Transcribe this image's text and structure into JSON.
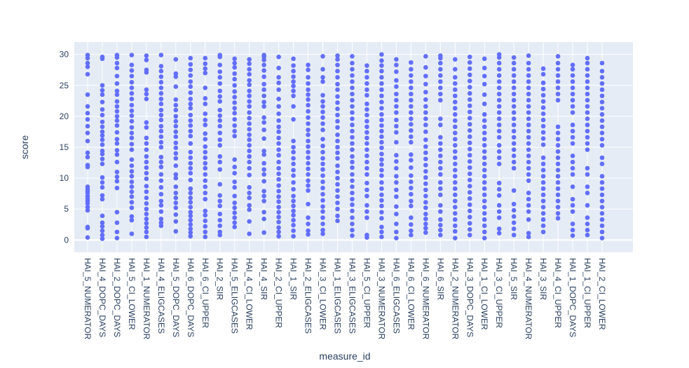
{
  "chart_data": {
    "type": "scatter",
    "xlabel": "measure_id",
    "ylabel": "score",
    "ylim": [
      -2,
      32
    ],
    "y_ticks": [
      0,
      5,
      10,
      15,
      20,
      25,
      30
    ],
    "grid": true,
    "marker_color": "#636efa",
    "plot_bg": "#e5ecf6",
    "categories": [
      "HAI_5_NUMERATOR",
      "HAI_4_DOPC_DAYS",
      "HAI_2_DOPC_DAYS",
      "HAI_5_CI_LOWER",
      "HAI_1_NUMERATOR",
      "HAI_4_ELIGCASES",
      "HAI_5_DOPC_DAYS",
      "HAI_6_DOPC_DAYS",
      "HAI_6_CI_UPPER",
      "HAI_2_SIR",
      "HAI_5_ELIGCASES",
      "HAI_4_CI_LOWER",
      "HAI_4_SIR",
      "HAI_2_CI_UPPER",
      "HAI_1_SIR",
      "HAI_2_ELIGCASES",
      "HAI_3_CI_LOWER",
      "HAI_1_ELIGCASES",
      "HAI_3_ELIGCASES",
      "HAI_5_CI_UPPER",
      "HAI_3_NUMERATOR",
      "HAI_6_ELIGCASES",
      "HAI_6_CI_LOWER",
      "HAI_6_NUMERATOR",
      "HAI_6_SIR",
      "HAI_2_NUMERATOR",
      "HAI_3_DOPC_DAYS",
      "HAI_1_CI_LOWER",
      "HAI_3_CI_UPPER",
      "HAI_5_SIR",
      "HAI_4_NUMERATOR",
      "HAI_3_SIR",
      "HAI_4_CI_UPPER",
      "HAI_1_DOPC_DAYS",
      "HAI_1_CI_UPPER",
      "HAI_2_CI_LOWER"
    ],
    "series": [
      {
        "values": [
          [
            0.4,
            1.9,
            2.1,
            4.8,
            5.3,
            5.9,
            6.3,
            6.7,
            7.1,
            7.6,
            7.9,
            8.2,
            8.6,
            11.8,
            12.1,
            13.4,
            14.1,
            16.0,
            17.3,
            18.4,
            19.5,
            20.5,
            21.6,
            23.5,
            26.8,
            28.0,
            28.6,
            29.4,
            29.9
          ],
          [
            0.2,
            0.8,
            1.5,
            2.2,
            2.8,
            3.9,
            6.6,
            7.2,
            8.5,
            9.3,
            10.1,
            12.3,
            13.1,
            13.9,
            14.4,
            15.4,
            16.2,
            16.9,
            17.5,
            18.3,
            19.1,
            20.2,
            21.1,
            22.3,
            23.5,
            24.2,
            25.0,
            29.3,
            29.6
          ],
          [
            0.3,
            1.3,
            2.8,
            4.5,
            8.4,
            9.5,
            10.2,
            11.0,
            12.6,
            13.8,
            14.5,
            15.6,
            16.3,
            17.4,
            18.5,
            19.3,
            20.0,
            20.8,
            21.6,
            22.4,
            23.5,
            24.1,
            25.3,
            26.5,
            27.8,
            28.6,
            29.5,
            29.9
          ],
          [
            1.0,
            3.2,
            3.8,
            5.2,
            6.1,
            7.0,
            7.8,
            8.6,
            9.4,
            10.3,
            11.1,
            12.0,
            13.0,
            14.6,
            15.5,
            16.5,
            17.3,
            18.2,
            19.2,
            20.1,
            20.9,
            21.8,
            22.8,
            23.7,
            24.6,
            25.5,
            26.5,
            27.4,
            28.3,
            29.9
          ],
          [
            0.5,
            1.3,
            2.0,
            2.7,
            3.4,
            4.2,
            5.0,
            5.9,
            6.8,
            7.8,
            8.7,
            9.9,
            10.8,
            11.7,
            12.6,
            13.5,
            14.6,
            15.6,
            16.5,
            18.2,
            19.0,
            22.8,
            23.6,
            24.3,
            27.1,
            27.5,
            29.1,
            29.8
          ],
          [
            2.3,
            2.8,
            3.4,
            4.6,
            5.6,
            6.3,
            7.4,
            8.5,
            9.6,
            10.6,
            11.8,
            12.6,
            13.4,
            15.0,
            15.8,
            16.7,
            17.6,
            18.4,
            19.4,
            20.2,
            21.0,
            22.0,
            22.8,
            23.7,
            24.6,
            25.5,
            26.4,
            27.3,
            28.1,
            29.9
          ],
          [
            1.4,
            3.0,
            4.1,
            5.2,
            6.0,
            6.8,
            7.6,
            8.6,
            10.0,
            10.6,
            12.0,
            13.2,
            14.0,
            14.9,
            15.7,
            16.7,
            17.5,
            18.4,
            19.2,
            20.0,
            21.0,
            21.8,
            22.7,
            24.8,
            26.4,
            26.9,
            29.2
          ],
          [
            0.6,
            1.2,
            1.8,
            2.5,
            3.2,
            3.9,
            4.5,
            5.3,
            6.1,
            6.8,
            7.6,
            8.3,
            9.7,
            10.8,
            11.6,
            12.4,
            13.3,
            14.2,
            15.6,
            16.8,
            17.6,
            18.5,
            19.3,
            20.2,
            21.3,
            22.0,
            22.8,
            23.8,
            24.8,
            25.6,
            26.6,
            27.5,
            28.4,
            29.4
          ],
          [
            0.5,
            1.3,
            2.2,
            3.1,
            4.0,
            4.7,
            6.6,
            7.6,
            8.6,
            9.6,
            10.6,
            11.6,
            12.4,
            13.3,
            14.2,
            15.1,
            16.3,
            17.2,
            18.6,
            19.4,
            20.4,
            22.0,
            22.9,
            24.6,
            27.0,
            27.7,
            28.5,
            29.4
          ],
          [
            0.8,
            1.3,
            2.3,
            3.2,
            4.2,
            5.5,
            6.3,
            7.2,
            9.0,
            11.4,
            12.6,
            13.5,
            15.3,
            16.2,
            17.3,
            18.4,
            19.3,
            20.1,
            21.0,
            22.4,
            23.2,
            24.1,
            25.3,
            26.3,
            27.2,
            28.3,
            29.6,
            29.9
          ],
          [
            2.1,
            2.8,
            3.6,
            4.4,
            5.2,
            6.0,
            7.1,
            8.5,
            9.4,
            10.8,
            11.8,
            13.0,
            16.8,
            17.6,
            18.5,
            19.5,
            20.5,
            21.3,
            22.2,
            23.1,
            24.0,
            25.0,
            26.0,
            26.9,
            27.9,
            28.6,
            29.3
          ],
          [
            1.0,
            3.0,
            4.9,
            5.6,
            6.8,
            7.6,
            8.5,
            10.5,
            11.6,
            12.6,
            13.5,
            14.4,
            15.3,
            16.2,
            17.0,
            17.9,
            18.8,
            19.7,
            20.6,
            21.6,
            22.4,
            23.3,
            24.1,
            25.1,
            25.8,
            26.8,
            27.6,
            28.5,
            29.2
          ],
          [
            1.2,
            3.4,
            4.5,
            6.3,
            7.1,
            7.9,
            9.5,
            10.6,
            11.4,
            12.4,
            13.8,
            14.4,
            16.4,
            17.8,
            19.0,
            19.8,
            21.6,
            22.3,
            23.3,
            24.3,
            25.2,
            26.4,
            27.4,
            28.3,
            29.1,
            29.6,
            29.9
          ],
          [
            0.6,
            1.3,
            2.0,
            2.9,
            3.7,
            4.5,
            5.3,
            6.2,
            7.0,
            7.9,
            8.8,
            9.8,
            10.7,
            11.6,
            12.6,
            13.7,
            14.6,
            15.6,
            16.5,
            17.5,
            18.3,
            19.3,
            20.4,
            21.6,
            22.8,
            24.3,
            25.4,
            26.3,
            27.8,
            29.6
          ],
          [
            0.6,
            1.5,
            2.4,
            3.2,
            4.0,
            4.7,
            5.5,
            6.3,
            7.1,
            8.2,
            9.3,
            10.4,
            11.3,
            12.3,
            13.2,
            14.2,
            15.0,
            16.0,
            19.5,
            21.6,
            23.3,
            24.1,
            24.9,
            25.6,
            26.4,
            27.3,
            28.2,
            29.3
          ],
          [
            0.9,
            1.5,
            2.6,
            3.6,
            5.8,
            8.0,
            8.8,
            9.6,
            10.6,
            11.5,
            12.4,
            13.3,
            14.2,
            15.1,
            16.0,
            17.0,
            17.8,
            18.8,
            19.8,
            20.8,
            21.8,
            22.7,
            23.5,
            24.3,
            25.3,
            26.3,
            27.5,
            28.3
          ],
          [
            1.0,
            1.6,
            2.6,
            3.6,
            4.6,
            5.4,
            6.4,
            7.4,
            8.4,
            9.4,
            10.4,
            11.4,
            12.3,
            13.2,
            14.2,
            15.2,
            16.3,
            17.8,
            18.8,
            19.8,
            20.7,
            21.6,
            22.4,
            23.4,
            25.6,
            26.3,
            27.6,
            29.7
          ],
          [
            3.1,
            3.9,
            5.0,
            6.0,
            7.0,
            8.0,
            9.0,
            10.0,
            11.0,
            12.0,
            13.2,
            14.1,
            15.0,
            16.0,
            17.0,
            18.2,
            19.2,
            20.2,
            21.2,
            22.2,
            23.2,
            24.3,
            25.2,
            26.3,
            27.3,
            28.3,
            29.2,
            29.8
          ],
          [
            0.7,
            1.6,
            2.6,
            3.6,
            4.7,
            5.7,
            6.6,
            7.6,
            8.6,
            9.6,
            10.6,
            11.7,
            12.6,
            13.5,
            14.6,
            15.6,
            16.6,
            17.6,
            18.6,
            19.6,
            20.6,
            21.6,
            22.6,
            23.6,
            24.6,
            25.6,
            26.6,
            27.6,
            28.6,
            29.7
          ],
          [
            0.4,
            0.8,
            3.6,
            4.6,
            5.6,
            7.1,
            8.1,
            9.2,
            10.6,
            11.6,
            12.6,
            13.6,
            14.6,
            15.6,
            16.5,
            17.4,
            18.3,
            19.2,
            20.2,
            21.1,
            22.0,
            23.4,
            24.3,
            25.3,
            26.3,
            27.3,
            28.2
          ],
          [
            0.5,
            1.3,
            2.1,
            3.5,
            4.5,
            5.5,
            6.4,
            7.3,
            8.3,
            9.3,
            10.4,
            11.3,
            12.2,
            13.0,
            13.9,
            14.9,
            15.8,
            16.7,
            17.6,
            18.5,
            19.4,
            20.3,
            21.3,
            22.3,
            23.3,
            24.3,
            25.3,
            26.3,
            27.3,
            28.2,
            29.0,
            30.0
          ],
          [
            0.3,
            1.3,
            2.6,
            4.2,
            5.4,
            7.0,
            8.1,
            9.3,
            10.3,
            11.6,
            12.7,
            13.7,
            15.8,
            17.4,
            18.4,
            19.4,
            20.6,
            21.6,
            22.6,
            23.6,
            24.8,
            25.8,
            27.2,
            28.3,
            29.2
          ],
          [
            0.8,
            1.5,
            2.5,
            3.6,
            5.5,
            6.3,
            7.4,
            8.4,
            9.4,
            10.4,
            11.7,
            12.9,
            13.8,
            15.8,
            16.7,
            17.7,
            18.7,
            19.6,
            20.6,
            21.6,
            22.6,
            23.6,
            24.6,
            25.6,
            26.6,
            27.6,
            28.7
          ],
          [
            1.2,
            1.9,
            2.6,
            3.4,
            4.2,
            5.2,
            6.1,
            7.1,
            8.1,
            9.1,
            10.1,
            11.1,
            12.1,
            13.1,
            14.1,
            15.1,
            16.2,
            17.5,
            18.6,
            19.6,
            20.6,
            21.6,
            22.7,
            23.9,
            25.2,
            26.5,
            27.9,
            29.7
          ],
          [
            0.8,
            1.6,
            2.4,
            3.3,
            4.6,
            5.6,
            7.3,
            8.3,
            9.3,
            10.6,
            11.6,
            12.6,
            13.6,
            14.6,
            15.6,
            16.6,
            18.6,
            19.6,
            22.6,
            23.6,
            24.6,
            25.6,
            26.6,
            27.6,
            28.6,
            29.4,
            29.8
          ],
          [
            0.3,
            1.4,
            2.3,
            3.3,
            4.3,
            5.3,
            6.3,
            7.3,
            8.3,
            9.3,
            10.3,
            11.3,
            12.3,
            13.3,
            14.3,
            15.3,
            16.3,
            17.3,
            18.3,
            19.3,
            20.3,
            21.3,
            22.3,
            23.3,
            24.3,
            25.3,
            26.3,
            27.6,
            29.2
          ],
          [
            0.8,
            1.7,
            2.7,
            3.7,
            4.7,
            5.7,
            6.7,
            7.7,
            8.7,
            9.7,
            10.7,
            11.7,
            12.7,
            13.7,
            14.7,
            15.7,
            16.7,
            17.7,
            18.7,
            19.7,
            20.7,
            21.7,
            22.7,
            23.7,
            24.7,
            25.7,
            26.7,
            27.7,
            28.7,
            29.6
          ],
          [
            0.3,
            1.3,
            2.3,
            3.3,
            4.3,
            5.3,
            6.3,
            7.3,
            8.3,
            9.3,
            10.3,
            11.3,
            12.3,
            13.3,
            14.3,
            15.3,
            16.3,
            17.3,
            18.3,
            19.3,
            20.3,
            22.0,
            23.5,
            25.2,
            26.5,
            27.8,
            29.3
          ],
          [
            1.1,
            1.8,
            3.6,
            4.6,
            5.6,
            7.2,
            8.2,
            9.2,
            12.3,
            13.3,
            14.3,
            15.3,
            16.6,
            17.6,
            18.6,
            19.6,
            20.6,
            21.6,
            22.6,
            23.6,
            24.6,
            25.6,
            26.6,
            27.6,
            28.6,
            29.5,
            30.0
          ],
          [
            0.8,
            1.8,
            2.8,
            3.8,
            4.8,
            5.8,
            8.0,
            11.6,
            12.6,
            13.6,
            14.6,
            15.6,
            16.6,
            17.6,
            18.6,
            19.6,
            20.6,
            21.6,
            22.6,
            23.6,
            24.6,
            25.6,
            26.6,
            27.6,
            28.6,
            29.5
          ],
          [
            0.5,
            1.1,
            3.3,
            4.6,
            5.6,
            6.6,
            7.6,
            9.6,
            10.6,
            11.6,
            12.6,
            13.6,
            14.6,
            15.6,
            16.6,
            17.6,
            18.6,
            19.6,
            20.6,
            21.6,
            22.6,
            23.6,
            24.6,
            25.6,
            26.6,
            27.6,
            28.6,
            29.8
          ],
          [
            1.3,
            2.3,
            3.3,
            4.3,
            5.3,
            6.3,
            7.3,
            8.3,
            9.3,
            10.3,
            11.3,
            12.3,
            13.3,
            15.4,
            16.4,
            17.4,
            18.4,
            19.4,
            20.4,
            21.4,
            22.4,
            23.4,
            24.4,
            25.4,
            26.8,
            27.7
          ],
          [
            3.5,
            4.3,
            5.3,
            6.3,
            7.3,
            8.3,
            9.3,
            10.3,
            11.3,
            12.3,
            13.3,
            14.3,
            15.3,
            16.3,
            17.3,
            18.3,
            22.6,
            23.6,
            24.6,
            25.6,
            26.6,
            27.6,
            28.6,
            29.7
          ],
          [
            0.7,
            1.6,
            2.6,
            4.6,
            5.6,
            6.6,
            8.6,
            10.6,
            11.6,
            12.6,
            13.6,
            15.6,
            16.6,
            17.6,
            18.6,
            20.6,
            21.6,
            22.6,
            23.6,
            24.6,
            25.6,
            26.6,
            27.6,
            28.3
          ],
          [
            0.8,
            1.6,
            2.6,
            3.6,
            5.6,
            7.6,
            8.6,
            10.6,
            11.6,
            14.6,
            15.6,
            16.6,
            17.6,
            18.6,
            19.6,
            20.6,
            21.6,
            22.6,
            23.6,
            24.6,
            25.6,
            26.6,
            27.6,
            28.6,
            29.4
          ],
          [
            0.3,
            1.3,
            2.3,
            3.3,
            4.3,
            5.3,
            6.3,
            7.3,
            8.3,
            9.3,
            10.3,
            12.3,
            13.3,
            15.3,
            16.3,
            17.3,
            18.3,
            19.3,
            20.3,
            21.3,
            22.3,
            23.3,
            24.3,
            25.3,
            26.3,
            27.3,
            28.6
          ]
        ]
      }
    ]
  }
}
